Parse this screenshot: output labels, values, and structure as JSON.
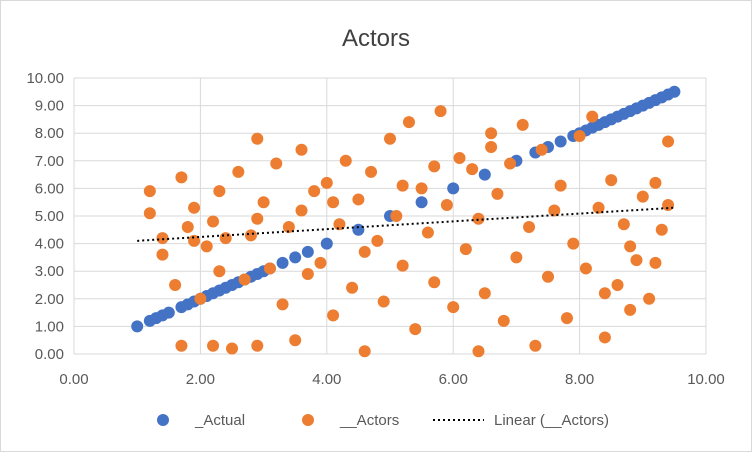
{
  "chart_data": {
    "type": "scatter",
    "title": "Actors",
    "xlabel": "",
    "ylabel": "",
    "xlim": [
      0,
      10
    ],
    "ylim": [
      0,
      10
    ],
    "x_ticks": [
      "0.00",
      "2.00",
      "4.00",
      "6.00",
      "8.00",
      "10.00"
    ],
    "y_ticks": [
      "0.00",
      "1.00",
      "2.00",
      "3.00",
      "4.00",
      "5.00",
      "6.00",
      "7.00",
      "8.00",
      "9.00",
      "10.00"
    ],
    "grid": true,
    "legend_position": "bottom",
    "series": [
      {
        "name": "_Actual",
        "color": "#4472c4",
        "x": [
          1.0,
          1.2,
          1.3,
          1.4,
          1.5,
          1.7,
          1.8,
          1.9,
          2.0,
          2.1,
          2.2,
          2.3,
          2.4,
          2.5,
          2.6,
          2.7,
          2.8,
          2.9,
          3.0,
          3.1,
          3.3,
          3.5,
          3.7,
          4.0,
          4.5,
          5.0,
          5.5,
          6.0,
          6.5,
          7.0,
          7.3,
          7.5,
          7.7,
          7.9,
          8.0,
          8.1,
          8.2,
          8.3,
          8.4,
          8.5,
          8.6,
          8.7,
          8.8,
          8.9,
          9.0,
          9.1,
          9.2,
          9.3,
          9.4,
          9.5
        ],
        "y": [
          1.0,
          1.2,
          1.3,
          1.4,
          1.5,
          1.7,
          1.8,
          1.9,
          2.0,
          2.1,
          2.2,
          2.3,
          2.4,
          2.5,
          2.6,
          2.7,
          2.8,
          2.9,
          3.0,
          3.1,
          3.3,
          3.5,
          3.7,
          4.0,
          4.5,
          5.0,
          5.5,
          6.0,
          6.5,
          7.0,
          7.3,
          7.5,
          7.7,
          7.9,
          8.0,
          8.1,
          8.2,
          8.3,
          8.4,
          8.5,
          8.6,
          8.7,
          8.8,
          8.9,
          9.0,
          9.1,
          9.2,
          9.3,
          9.4,
          9.5
        ]
      },
      {
        "name": "__Actors",
        "color": "#ed7d31",
        "x": [
          1.2,
          1.2,
          1.4,
          1.6,
          1.7,
          1.7,
          1.8,
          1.9,
          2.0,
          2.1,
          2.2,
          2.2,
          2.3,
          2.4,
          2.5,
          2.6,
          2.7,
          2.8,
          2.9,
          2.9,
          3.0,
          3.1,
          3.2,
          3.3,
          3.4,
          3.5,
          3.6,
          3.7,
          3.8,
          3.9,
          4.0,
          4.1,
          4.2,
          4.3,
          4.4,
          4.5,
          4.6,
          4.6,
          4.7,
          4.8,
          4.9,
          5.0,
          5.1,
          5.2,
          5.3,
          5.4,
          5.5,
          5.6,
          5.7,
          5.8,
          5.9,
          6.0,
          6.1,
          6.2,
          6.3,
          6.4,
          6.4,
          6.5,
          6.6,
          6.7,
          6.8,
          6.9,
          7.0,
          7.1,
          7.2,
          7.3,
          7.4,
          7.5,
          7.6,
          7.7,
          7.8,
          7.9,
          8.0,
          8.1,
          8.2,
          8.3,
          8.4,
          8.5,
          8.6,
          8.7,
          8.8,
          8.9,
          9.0,
          9.1,
          9.2,
          9.3,
          9.4,
          9.4,
          9.2,
          8.8,
          8.4,
          6.6,
          5.7,
          5.2,
          4.1,
          3.6,
          2.9,
          2.3,
          1.9,
          1.4
        ],
        "y": [
          5.9,
          5.1,
          3.6,
          2.5,
          6.4,
          0.3,
          4.6,
          5.3,
          2.0,
          3.9,
          4.8,
          0.3,
          5.9,
          4.2,
          0.2,
          6.6,
          2.7,
          4.3,
          7.8,
          0.3,
          5.5,
          3.1,
          6.9,
          1.8,
          4.6,
          0.5,
          7.4,
          2.9,
          5.9,
          3.3,
          6.2,
          1.4,
          4.7,
          7.0,
          2.4,
          5.6,
          0.1,
          3.7,
          6.6,
          4.1,
          1.9,
          7.8,
          5.0,
          3.2,
          8.4,
          0.9,
          6.0,
          4.4,
          2.6,
          8.8,
          5.4,
          1.7,
          7.1,
          3.8,
          6.7,
          0.1,
          4.9,
          2.2,
          8.0,
          5.8,
          1.2,
          6.9,
          3.5,
          8.3,
          4.6,
          0.3,
          7.4,
          2.8,
          5.2,
          6.1,
          1.3,
          4.0,
          7.9,
          3.1,
          8.6,
          5.3,
          0.6,
          6.3,
          2.5,
          4.7,
          1.6,
          3.4,
          5.7,
          2.0,
          3.3,
          4.5,
          7.7,
          5.4,
          6.2,
          3.9,
          2.2,
          7.5,
          6.8,
          6.1,
          5.5,
          5.2,
          4.9,
          3.0,
          4.1,
          4.2
        ]
      },
      {
        "name": "Linear (__Actors)",
        "color": "#000000",
        "line_style": "dotted",
        "x": [
          1.0,
          9.5
        ],
        "y": [
          4.1,
          5.3
        ]
      }
    ]
  }
}
